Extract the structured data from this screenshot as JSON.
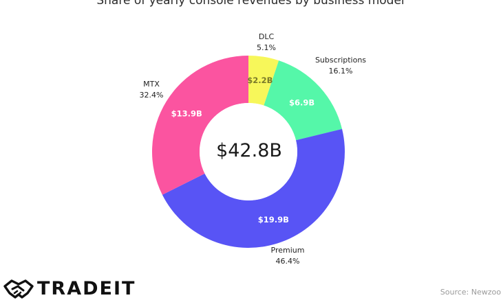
{
  "chart_data": {
    "type": "pie",
    "title": "Share of yearly console revenues by business model",
    "center_label": "$42.8B",
    "donut": true,
    "slices": [
      {
        "name": "DLC",
        "percent_label": "5.1%",
        "percent": 5.1,
        "value_label": "$2.2B",
        "value": 2.2,
        "color": "#f7f75a",
        "value_color": "#7a7a2a"
      },
      {
        "name": "Subscriptions",
        "percent_label": "16.1%",
        "percent": 16.1,
        "value_label": "$6.9B",
        "value": 6.9,
        "color": "#55f7a9",
        "value_color": "#ffffff"
      },
      {
        "name": "Premium",
        "percent_label": "46.4%",
        "percent": 46.4,
        "value_label": "$19.9B",
        "value": 19.9,
        "color": "#5854f5",
        "value_color": "#ffffff"
      },
      {
        "name": "MTX",
        "percent_label": "32.4%",
        "percent": 32.4,
        "value_label": "$13.9B",
        "value": 13.9,
        "color": "#fb54a0",
        "value_color": "#ffffff"
      }
    ]
  },
  "branding": {
    "logo_text": "TRADEIT",
    "logo_icon": "handshake-icon"
  },
  "source": "Source: Newzoo"
}
